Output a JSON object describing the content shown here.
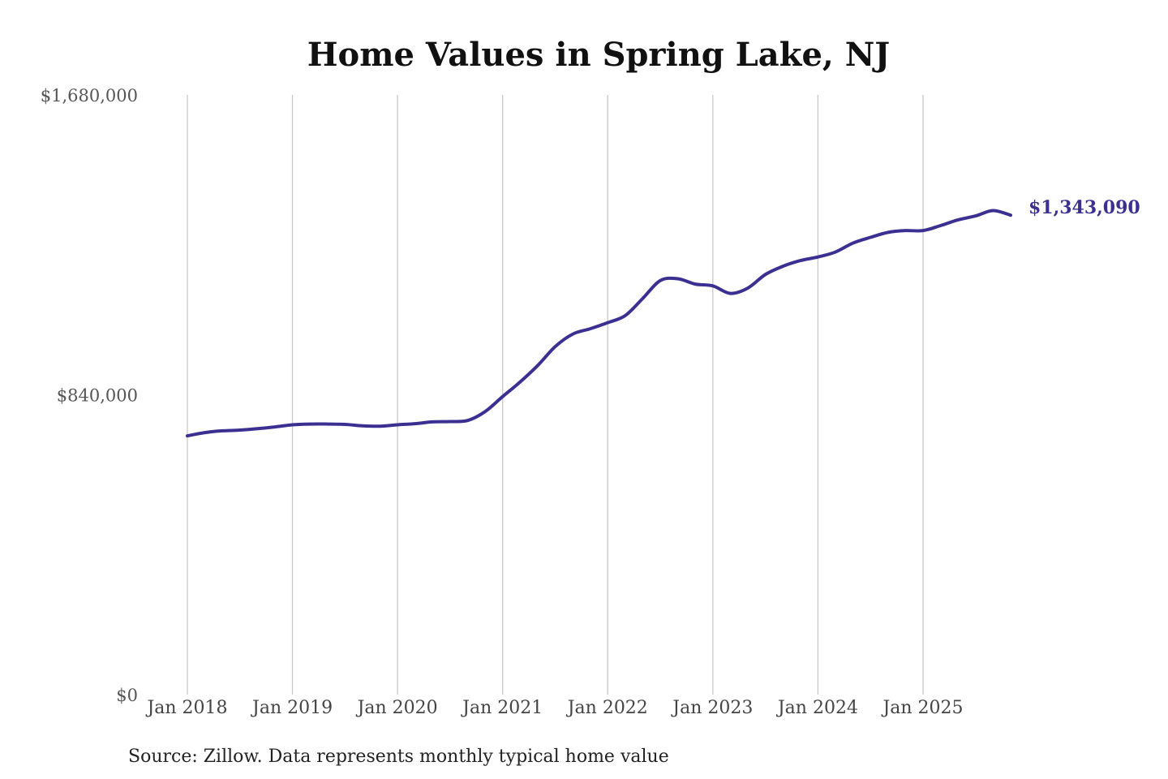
{
  "chart_data": {
    "type": "line",
    "title": "Home Values in Spring Lake, NJ",
    "xlabel": "",
    "ylabel": "",
    "ylim": [
      0,
      1680000
    ],
    "xlim": [
      "2018-01",
      "2025-11"
    ],
    "grid": {
      "vertical": true,
      "horizontal": false
    },
    "legend": "none",
    "y_ticks": [
      {
        "value": 0,
        "label": "$0"
      },
      {
        "value": 840000,
        "label": "$840,000"
      },
      {
        "value": 1680000,
        "label": "$1,680,000"
      }
    ],
    "x_ticks": [
      {
        "value": "2018-01",
        "label": "Jan 2018"
      },
      {
        "value": "2019-01",
        "label": "Jan 2019"
      },
      {
        "value": "2020-01",
        "label": "Jan 2020"
      },
      {
        "value": "2021-01",
        "label": "Jan 2021"
      },
      {
        "value": "2022-01",
        "label": "Jan 2022"
      },
      {
        "value": "2023-01",
        "label": "Jan 2023"
      },
      {
        "value": "2024-01",
        "label": "Jan 2024"
      },
      {
        "value": "2025-01",
        "label": "Jan 2025"
      }
    ],
    "series": [
      {
        "color": "#3b3091",
        "x": [
          "2018-01",
          "2018-03",
          "2018-05",
          "2018-07",
          "2018-09",
          "2018-11",
          "2019-01",
          "2019-03",
          "2019-05",
          "2019-07",
          "2019-09",
          "2019-11",
          "2020-01",
          "2020-03",
          "2020-05",
          "2020-07",
          "2020-09",
          "2020-11",
          "2021-01",
          "2021-03",
          "2021-05",
          "2021-07",
          "2021-09",
          "2021-11",
          "2022-01",
          "2022-03",
          "2022-05",
          "2022-07",
          "2022-09",
          "2022-11",
          "2023-01",
          "2023-03",
          "2023-05",
          "2023-07",
          "2023-09",
          "2023-11",
          "2024-01",
          "2024-03",
          "2024-05",
          "2024-07",
          "2024-09",
          "2024-11",
          "2025-01",
          "2025-03",
          "2025-05",
          "2025-07",
          "2025-09",
          "2025-11"
        ],
        "values": [
          725000,
          734000,
          739000,
          741000,
          745000,
          750000,
          756000,
          758000,
          758000,
          757000,
          753000,
          752000,
          756000,
          759000,
          764000,
          765000,
          768000,
          793000,
          835000,
          876000,
          922000,
          975000,
          1010000,
          1025000,
          1042000,
          1062000,
          1110000,
          1160000,
          1165000,
          1150000,
          1145000,
          1124000,
          1139000,
          1177000,
          1200000,
          1216000,
          1226000,
          1240000,
          1265000,
          1281000,
          1295000,
          1300000,
          1300000,
          1314000,
          1330000,
          1341000,
          1356000,
          1343090
        ]
      }
    ],
    "annotations": [
      {
        "text": "$1,343,090",
        "x": "2025-11",
        "y": 1343090
      }
    ]
  },
  "source_note": "Source: Zillow. Data represents monthly typical home value"
}
